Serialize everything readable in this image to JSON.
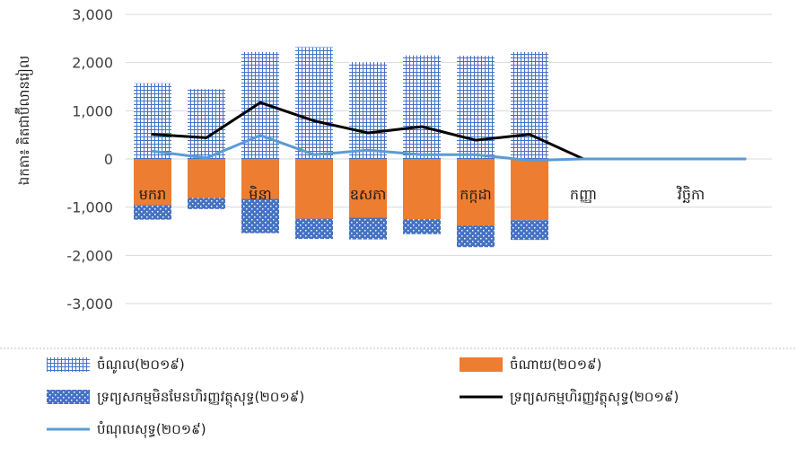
{
  "chart_data": {
    "type": "bar",
    "ylabel": "ឯកតា៖ គិតជាប៊ីលានរៀល",
    "ylim": [
      -3000,
      3000
    ],
    "yticks": [
      3000,
      2000,
      1000,
      0,
      -1000,
      -2000,
      -3000
    ],
    "ytick_labels": [
      "3,000",
      "2,000",
      "1,000",
      "0",
      "-1,000",
      "-2,000",
      "-3,000"
    ],
    "categories": [
      "មករា",
      "",
      "មិនា",
      "",
      "ឧសភា",
      "",
      "កក្កដា",
      "",
      "កញ្ញា",
      "",
      "វិច្ឆិកា",
      ""
    ],
    "series": [
      {
        "name": "ចំណូល(២០១៩)",
        "kind": "bar",
        "color": "#4472C4",
        "values": [
          1570,
          1450,
          2220,
          2320,
          2010,
          2150,
          2140,
          2220,
          null,
          null,
          null,
          null
        ]
      },
      {
        "name": "ចំណាយ(២០១៩)",
        "kind": "bar",
        "color": "#ED7D31",
        "values": [
          -960,
          -810,
          -830,
          -1240,
          -1220,
          -1250,
          -1380,
          -1270,
          null,
          null,
          null,
          null
        ]
      },
      {
        "name": "ទ្រព្យសកម្មមិនមែនហិរញ្ញវត្ថុសុទ្ធ(២០១៩)",
        "kind": "bar",
        "color": "#4472C4",
        "values": [
          -300,
          -230,
          -710,
          -420,
          -450,
          -310,
          -450,
          -410,
          null,
          null,
          null,
          null
        ]
      },
      {
        "name": "ទ្រព្យសកម្មហិរញ្ញវត្ថុសុទ្ធ(២០១៩)",
        "kind": "line",
        "color": "#000000",
        "values": [
          510,
          440,
          1170,
          790,
          540,
          670,
          390,
          510,
          0,
          0,
          0,
          0
        ]
      },
      {
        "name": "បំណុលសុទ្ធ(២០១៩)",
        "kind": "line",
        "color": "#5B9BD5",
        "values": [
          160,
          20,
          490,
          90,
          180,
          90,
          90,
          -30,
          0,
          0,
          0,
          0
        ]
      }
    ],
    "grid": "horizontal",
    "legend_position": "bottom"
  }
}
